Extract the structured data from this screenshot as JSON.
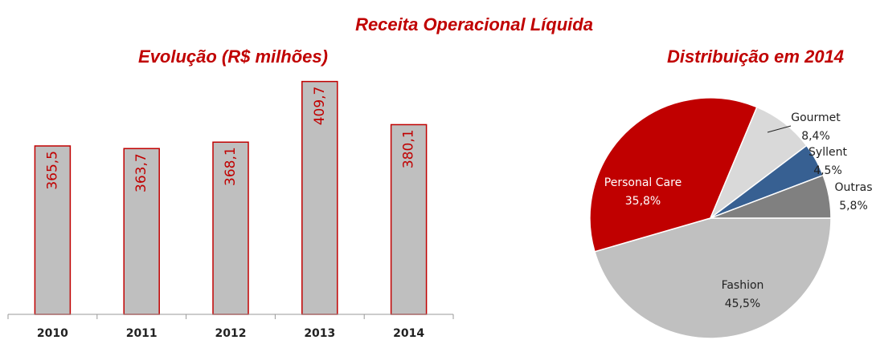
{
  "title": "Receita Operacional Líquida",
  "chart_data": [
    {
      "type": "bar",
      "title": "Evolução (R$ milhões)",
      "categories": [
        "2010",
        "2011",
        "2012",
        "2013",
        "2014"
      ],
      "values": [
        365.5,
        363.7,
        368.1,
        409.7,
        380.1
      ],
      "value_labels": [
        "365,5",
        "363,7",
        "368,1",
        "409,7",
        "380,1"
      ],
      "color": "#bfbfbf",
      "edge_color": "#c00000",
      "label_color": "#c00000",
      "ylim": [
        250,
        415
      ]
    },
    {
      "type": "pie",
      "title": "Distribuição em 2014",
      "categories": [
        "Fashion",
        "Personal Care",
        "Gourmet",
        "Syllent",
        "Outras"
      ],
      "values": [
        45.5,
        35.8,
        8.4,
        4.5,
        5.8
      ],
      "value_labels": [
        "45,5%",
        "35,8%",
        "8,4%",
        "4,5%",
        "5,8%"
      ],
      "colors": [
        "#c0c0c0",
        "#c00000",
        "#d9d9d9",
        "#376092",
        "#808080"
      ]
    }
  ]
}
